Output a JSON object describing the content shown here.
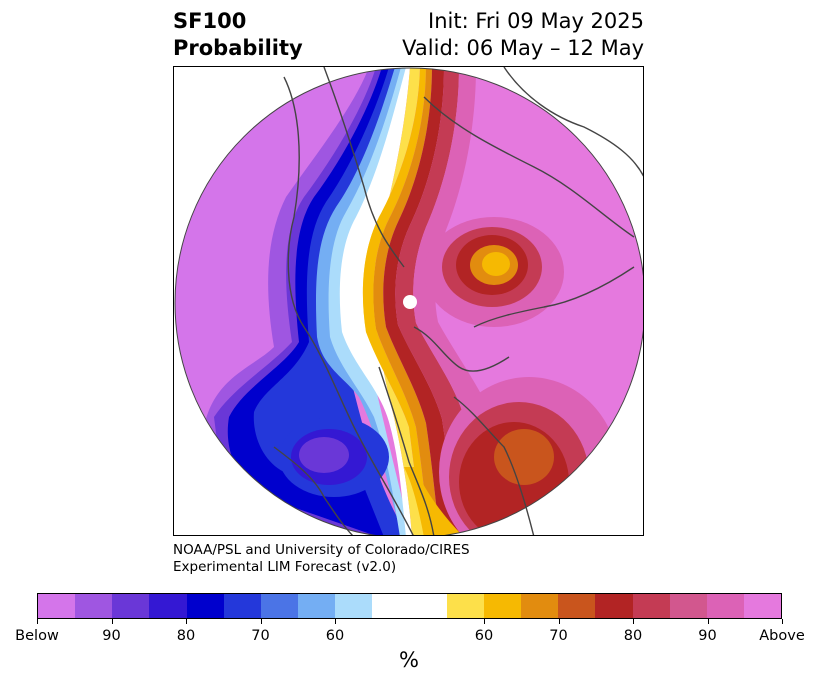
{
  "header": {
    "title_line1": "SF100",
    "title_line2": "Probability",
    "init": "Init: Fri 09 May 2025",
    "valid": "Valid: 06 May – 12 May"
  },
  "credit": {
    "line1": "NOAA/PSL and University of Colorado/CIRES",
    "line2": "Experimental LIM Forecast (v2.0)"
  },
  "colorbar": {
    "colors": [
      "#d475ea",
      "#9f56e1",
      "#6a37d7",
      "#3418d3",
      "#0000cd",
      "#2438da",
      "#4b74e6",
      "#74aef3",
      "#abdcfb",
      "#ffffff",
      "#ffffff",
      "#fde04a",
      "#f6b902",
      "#e28c0f",
      "#c9551d",
      "#b22424",
      "#c43b54",
      "#d2578e",
      "#dc62b6",
      "#e579de"
    ],
    "tick_labels": [
      "Below",
      "90",
      "80",
      "70",
      "60",
      "60",
      "70",
      "80",
      "90",
      "Above"
    ],
    "unit": "%"
  },
  "map": {
    "colors": {
      "far_above": "#e579de",
      "above_90": "#dc62b6",
      "above_80": "#c43b54",
      "above_75": "#b22424",
      "above_70": "#c9551d",
      "above_65": "#e28c0f",
      "above_60": "#f6b902",
      "above_55": "#fde04a",
      "neutral": "#ffffff",
      "below_55": "#abdcfb",
      "below_60": "#74aef3",
      "below_65": "#4b74e6",
      "below_70": "#2438da",
      "below_75": "#0000cd",
      "below_80": "#3418d3",
      "below_85": "#6a37d7",
      "below_90": "#9f56e1",
      "far_below": "#d475ea",
      "coast": "#444444"
    }
  }
}
